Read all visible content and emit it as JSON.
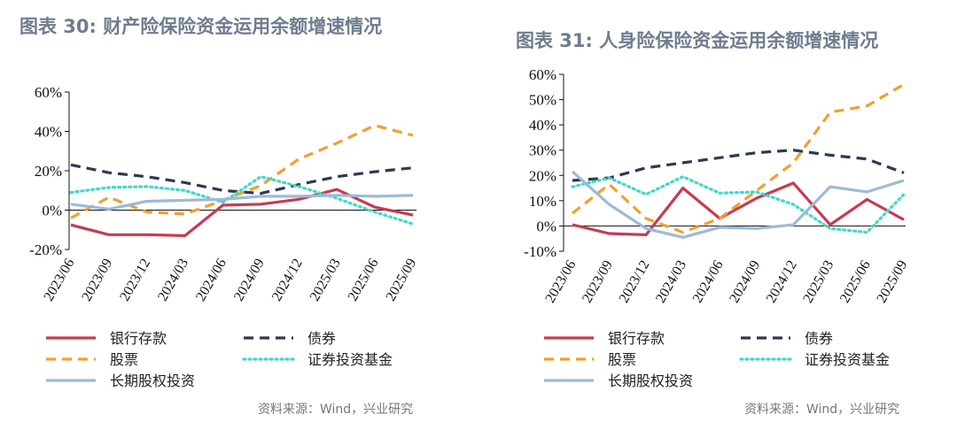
{
  "figures": [
    {
      "title": "图表 30: 财产险保险资金运用余额增速情况",
      "source": "资料来源：Wind，兴业研究"
    },
    {
      "title": "图表 31: 人身险保险资金运用余额增速情况",
      "source": "资料来源：Wind，兴业研究"
    }
  ],
  "chart_data": [
    {
      "type": "line",
      "title": "图表 30: 财产险保险资金运用余额增速情况",
      "xlabel": "",
      "ylabel": "",
      "ylim": [
        -20,
        60
      ],
      "y_ticks": [
        -20,
        0,
        20,
        40,
        60
      ],
      "y_tick_labels": [
        "-20%",
        "0%",
        "20%",
        "40%",
        "60%"
      ],
      "grid": false,
      "legend_position": "bottom",
      "categories": [
        "2023/06",
        "2023/09",
        "2023/12",
        "2024/03",
        "2024/06",
        "2024/09",
        "2024/12",
        "2025/03",
        "2025/06",
        "2025/09"
      ],
      "series": [
        {
          "name": "银行存款",
          "color": "#c93a50",
          "dash": "solid",
          "values": [
            -7.5,
            -12.5,
            -12.5,
            -13,
            2.5,
            3,
            5.5,
            10.5,
            1.5,
            -2.5
          ]
        },
        {
          "name": "债券",
          "color": "#2b3a55",
          "dash": "dashed",
          "values": [
            23,
            19,
            17,
            14,
            10,
            8.5,
            13,
            17,
            19.5,
            21.5
          ]
        },
        {
          "name": "股票",
          "color": "#f0a030",
          "dash": "dashed",
          "values": [
            -4,
            6.5,
            -1,
            -2,
            5,
            12.5,
            26,
            34,
            43,
            38
          ]
        },
        {
          "name": "证券投资基金",
          "color": "#40d8c8",
          "dash": "dotted",
          "values": [
            9,
            11.5,
            12,
            10,
            4,
            17,
            12,
            6,
            -1,
            -7
          ]
        },
        {
          "name": "长期股权投资",
          "color": "#9dbad8",
          "dash": "solid",
          "values": [
            3,
            0.5,
            4.5,
            5,
            5.5,
            7,
            7,
            7.5,
            7,
            7.5
          ]
        }
      ]
    },
    {
      "type": "line",
      "title": "图表 31: 人身险保险资金运用余额增速情况",
      "xlabel": "",
      "ylabel": "",
      "ylim": [
        -10,
        60
      ],
      "y_ticks": [
        -10,
        0,
        10,
        20,
        30,
        40,
        50,
        60
      ],
      "y_tick_labels": [
        "-10%",
        "0%",
        "10%",
        "20%",
        "30%",
        "40%",
        "50%",
        "60%"
      ],
      "grid": false,
      "legend_position": "bottom",
      "categories": [
        "2023/06",
        "2023/09",
        "2023/12",
        "2024/03",
        "2024/06",
        "2024/09",
        "2024/12",
        "2025/03",
        "2025/06",
        "2025/09"
      ],
      "series": [
        {
          "name": "银行存款",
          "color": "#c93a50",
          "dash": "solid",
          "values": [
            0.5,
            -3,
            -3.5,
            15,
            3,
            11,
            17,
            0.5,
            10.5,
            2.5
          ]
        },
        {
          "name": "债券",
          "color": "#2b3a55",
          "dash": "dashed",
          "values": [
            18,
            19,
            23,
            25,
            27,
            29,
            30,
            28,
            26.5,
            21
          ]
        },
        {
          "name": "股票",
          "color": "#f0a030",
          "dash": "dashed",
          "values": [
            5,
            16.5,
            3,
            -2.5,
            3,
            14,
            25,
            45,
            47.5,
            56
          ]
        },
        {
          "name": "证券投资基金",
          "color": "#40d8c8",
          "dash": "dotted",
          "values": [
            15.5,
            19,
            12.5,
            19.5,
            13,
            13.5,
            8.5,
            -1,
            -2.5,
            12.5
          ]
        },
        {
          "name": "长期股权投资",
          "color": "#9dbad8",
          "dash": "solid",
          "values": [
            21.5,
            8.5,
            -1,
            -4.5,
            -0.5,
            -1,
            0.5,
            15.5,
            13.5,
            18
          ]
        }
      ]
    }
  ]
}
